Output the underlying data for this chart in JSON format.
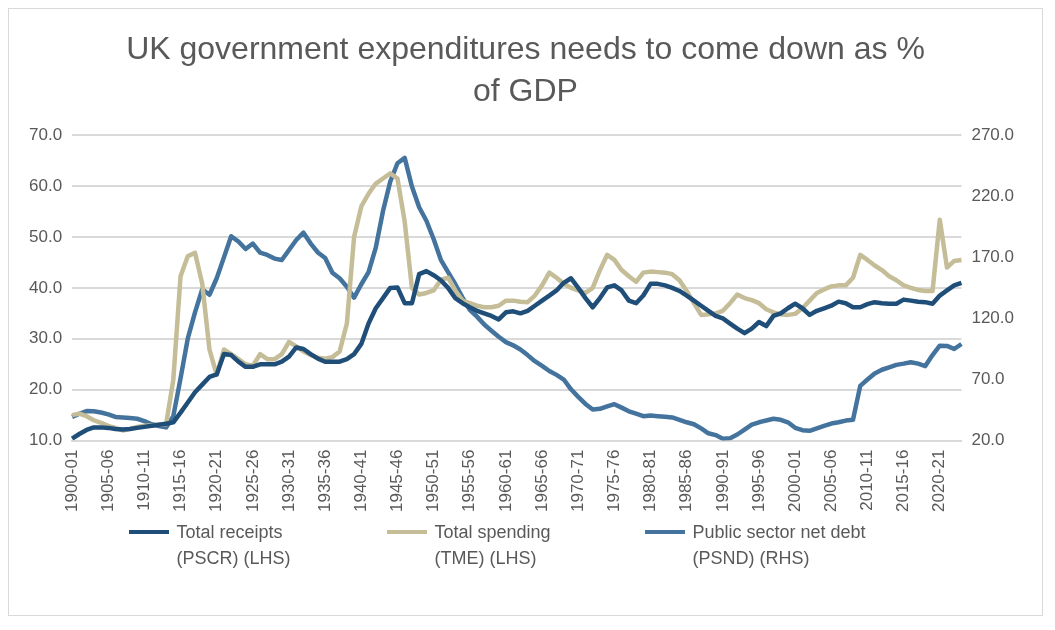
{
  "chart_data": {
    "type": "line",
    "title": "UK government expenditures needs to come down as % of GDP",
    "categories": [
      "1900-01",
      null,
      null,
      null,
      null,
      "1905-06",
      null,
      null,
      null,
      null,
      "1910-11",
      null,
      null,
      null,
      null,
      "1915-16",
      null,
      null,
      null,
      null,
      "1920-21",
      null,
      null,
      null,
      null,
      "1925-26",
      null,
      null,
      null,
      null,
      "1930-31",
      null,
      null,
      null,
      null,
      "1935-36",
      null,
      null,
      null,
      null,
      "1940-41",
      null,
      null,
      null,
      null,
      "1945-46",
      null,
      null,
      null,
      null,
      "1950-51",
      null,
      null,
      null,
      null,
      "1955-56",
      null,
      null,
      null,
      null,
      "1960-61",
      null,
      null,
      null,
      null,
      "1965-66",
      null,
      null,
      null,
      null,
      "1970-71",
      null,
      null,
      null,
      null,
      "1975-76",
      null,
      null,
      null,
      null,
      "1980-81",
      null,
      null,
      null,
      null,
      "1985-86",
      null,
      null,
      null,
      null,
      "1990-91",
      null,
      null,
      null,
      null,
      "1995-96",
      null,
      null,
      null,
      null,
      "2000-01",
      null,
      null,
      null,
      null,
      "2005-06",
      null,
      null,
      null,
      null,
      "2010-11",
      null,
      null,
      null,
      null,
      "2015-16",
      null,
      null,
      null,
      null,
      "2020-21",
      null,
      null,
      null
    ],
    "series": [
      {
        "name": "Total receipts (PSCR) (LHS)",
        "color": "#1f4e79",
        "values": [
          10.4,
          11.3,
          12.1,
          12.6,
          12.6,
          12.5,
          12.3,
          12.2,
          12.3,
          12.5,
          12.7,
          12.9,
          13.1,
          13.3,
          13.6,
          15.5,
          17.5,
          19.5,
          21,
          22.5,
          23,
          27,
          26.8,
          25.5,
          24.5,
          24.5,
          25,
          25,
          25,
          25.5,
          26.5,
          28.3,
          28,
          27,
          26.1,
          25.5,
          25.5,
          25.5,
          26,
          27,
          29,
          33,
          36,
          38,
          40,
          40.1,
          37,
          37,
          42.7,
          43.3,
          42.5,
          41.5,
          40,
          38,
          37,
          36.2,
          35.5,
          35,
          34.5,
          33.8,
          35.2,
          35.4,
          35,
          35.5,
          36.5,
          37.5,
          38.5,
          39.5,
          41,
          41.9,
          40,
          38,
          36.2,
          38,
          40.1,
          40.5,
          39.5,
          37.5,
          37,
          38.5,
          40.8,
          40.8,
          40.5,
          40,
          39.4,
          38.5,
          37.5,
          36.5,
          35.5,
          34.5,
          34,
          33,
          32,
          31.1,
          32,
          33.3,
          32.5,
          34.5,
          35,
          36,
          36.9,
          36,
          34.7,
          35.5,
          36,
          36.5,
          37.3,
          37,
          36.2,
          36.2,
          36.8,
          37.2,
          37,
          36.9,
          36.9,
          37.7,
          37.5,
          37.3,
          37.2,
          36.9,
          38.5,
          39.5,
          40.5,
          41
        ]
      },
      {
        "name": "Total spending (TME) (LHS)",
        "color": "#c4bd97",
        "values": [
          15,
          15.3,
          14.8,
          14,
          13.5,
          12.9,
          12.5,
          12,
          12.3,
          12.7,
          12.9,
          13,
          13.1,
          13.2,
          22,
          42.3,
          46.2,
          46.9,
          40.8,
          27.9,
          22.9,
          27.9,
          27,
          26,
          25,
          24.7,
          27,
          26,
          26,
          27,
          29.4,
          28.5,
          27.5,
          26.8,
          26.3,
          26.1,
          26.4,
          27.5,
          33,
          50,
          56,
          58.5,
          60.5,
          61.5,
          62.5,
          61.5,
          53,
          40,
          38.7,
          39,
          39.5,
          41.6,
          42,
          39.5,
          37.5,
          37,
          36.5,
          36.2,
          36.2,
          36.5,
          37.5,
          37.5,
          37.3,
          37.2,
          38.5,
          40.5,
          43,
          42,
          40.8,
          40,
          39.5,
          39,
          40,
          43.5,
          46.5,
          45.5,
          43.5,
          42.3,
          41.2,
          43,
          43.2,
          43.1,
          43,
          42.7,
          41.5,
          39.4,
          37,
          34.7,
          34.8,
          35,
          35.5,
          37,
          38.7,
          38,
          37.6,
          37,
          35.8,
          35.2,
          34.8,
          34.7,
          34.9,
          36,
          37.5,
          39,
          39.7,
          40.3,
          40.5,
          40.5,
          42,
          46.5,
          45.5,
          44.4,
          43.5,
          42.3,
          41.5,
          40.5,
          40,
          39.6,
          39.4,
          39.4,
          53.4,
          44,
          45.3,
          45.5
        ]
      },
      {
        "name": "Public sector net debt (PSND) (RHS)",
        "color": "#44749d",
        "axis": "y2",
        "values": [
          39.4,
          42,
          44.2,
          44,
          43,
          41.5,
          39.4,
          39,
          38.5,
          37.9,
          36,
          33.4,
          32,
          30.8,
          40,
          71,
          103.6,
          125,
          143.9,
          139.4,
          152.9,
          170,
          187.3,
          183,
          176.8,
          181.3,
          173.8,
          172,
          169,
          167.8,
          176,
          184.2,
          190.2,
          181.3,
          174,
          169.4,
          157.4,
          152.9,
          146,
          137,
          148,
          158,
          178,
          208,
          232,
          247,
          251.4,
          228,
          211,
          200,
          185,
          168,
          158,
          148,
          137,
          127,
          121.5,
          115,
          110,
          105,
          100.6,
          98,
          94.6,
          90,
          85,
          81.2,
          77,
          73.8,
          70,
          62,
          55.8,
          50,
          45.4,
          46,
          48,
          49.8,
          47,
          44,
          42,
          40,
          40.5,
          40,
          39.5,
          39,
          37,
          35,
          33.4,
          30,
          26,
          24.5,
          21.5,
          22,
          25,
          29,
          33,
          35,
          36.5,
          37.9,
          37,
          35,
          30.5,
          28.5,
          28,
          30,
          32,
          34,
          35,
          36.4,
          37,
          64.8,
          70,
          75,
          78,
          80,
          82,
          83,
          84.2,
          83,
          81,
          90,
          97.7,
          97.5,
          95,
          99.1
        ]
      }
    ],
    "ylim": [
      10,
      70
    ],
    "yticks": [
      {
        "value": 10,
        "label": "10.0"
      },
      {
        "value": 20,
        "label": "20.0"
      },
      {
        "value": 30,
        "label": "30.0"
      },
      {
        "value": 40,
        "label": "40.0"
      },
      {
        "value": 50,
        "label": "50.0"
      },
      {
        "value": 60,
        "label": "60.0"
      },
      {
        "value": 70,
        "label": "70.0"
      }
    ],
    "y2lim": [
      20,
      270
    ],
    "y2ticks": [
      {
        "value": 20,
        "label": "20.0"
      },
      {
        "value": 70,
        "label": "70.0"
      },
      {
        "value": 120,
        "label": "120.0"
      },
      {
        "value": 170,
        "label": "170.0"
      },
      {
        "value": 220,
        "label": "220.0"
      },
      {
        "value": 270,
        "label": "270.0"
      }
    ],
    "grid": "y",
    "legend": "bottom"
  }
}
